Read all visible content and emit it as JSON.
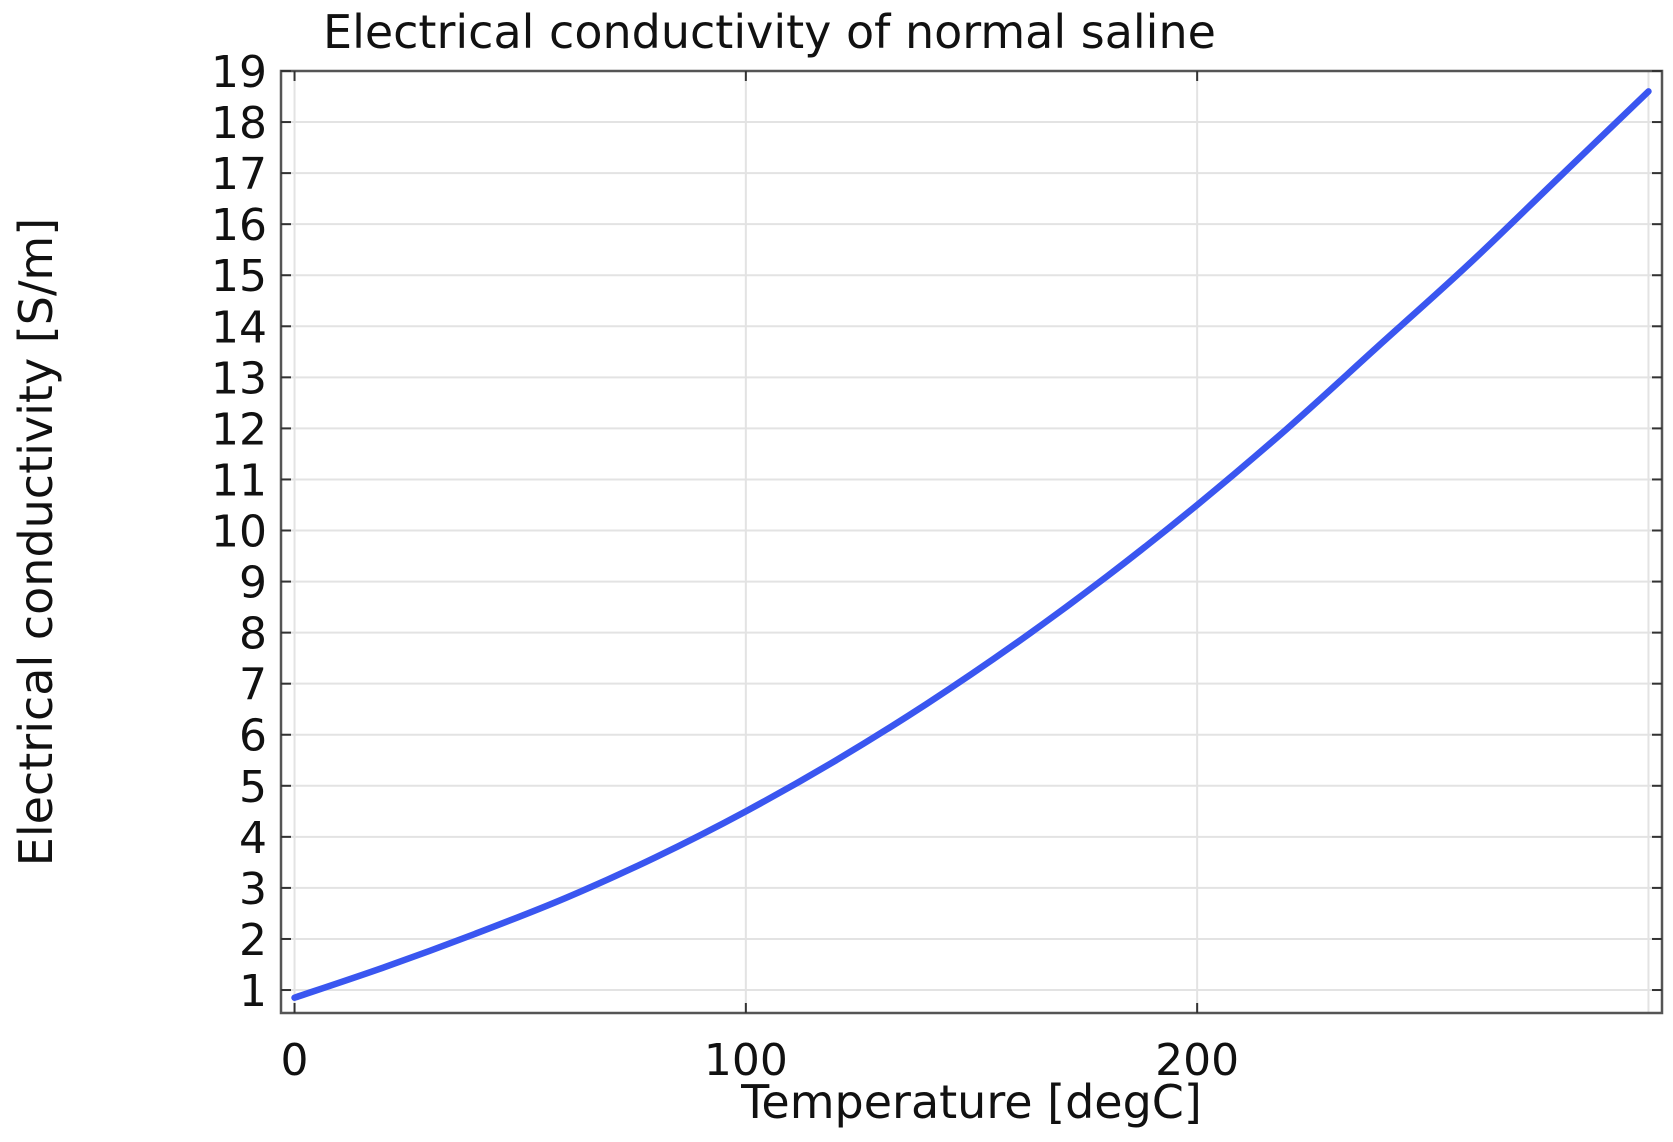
{
  "chart_data": {
    "type": "line",
    "title": "Electrical conductivity of normal saline",
    "xlabel": "Temperature [degC]",
    "ylabel": "Electrical conductivity [S/m]",
    "xlim": [
      -3,
      303
    ],
    "ylim": [
      0.55,
      19
    ],
    "x_ticks": [
      0,
      100,
      200
    ],
    "y_ticks": [
      1,
      2,
      3,
      4,
      5,
      6,
      7,
      8,
      9,
      10,
      11,
      12,
      13,
      14,
      15,
      16,
      17,
      18,
      19
    ],
    "grid": true,
    "series": [
      {
        "color": "#3a56f0",
        "x": [
          0,
          20,
          40,
          60,
          80,
          100,
          120,
          140,
          160,
          180,
          200,
          220,
          240,
          260,
          280,
          300
        ],
        "y": [
          0.85,
          1.45,
          2.1,
          2.8,
          3.6,
          4.5,
          5.5,
          6.6,
          7.8,
          9.1,
          10.5,
          12.0,
          13.6,
          15.2,
          16.9,
          18.6
        ]
      }
    ]
  }
}
